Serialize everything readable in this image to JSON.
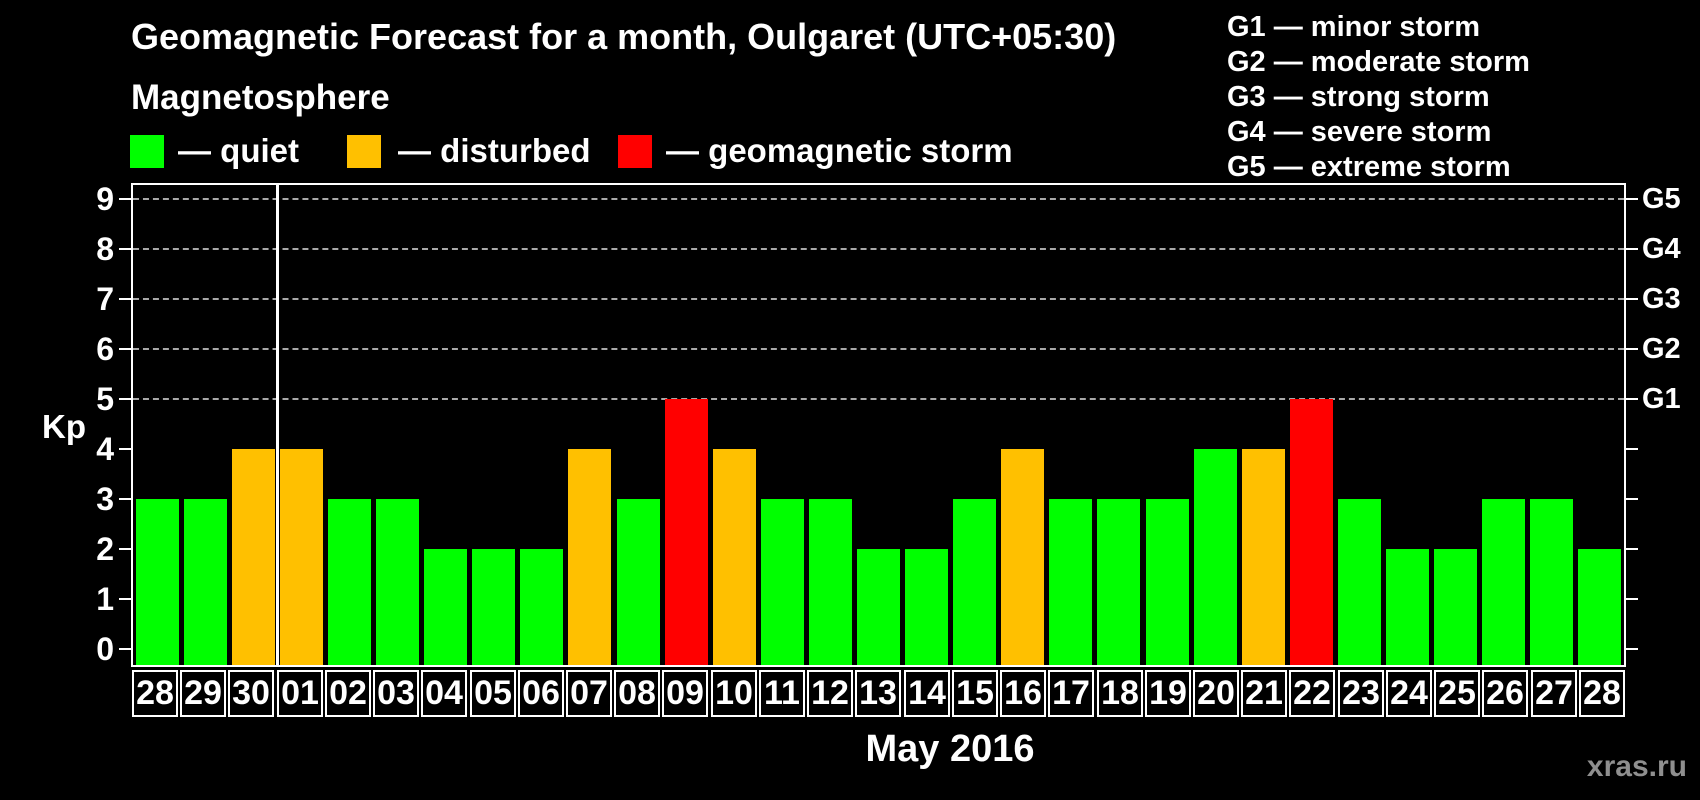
{
  "title": "Geomagnetic Forecast for a month, Oulgaret (UTC+05:30)",
  "subtitle": "Magnetosphere",
  "legend": {
    "items": [
      {
        "label": "— quiet",
        "color": "#00ff00",
        "status": "quiet"
      },
      {
        "label": "— disturbed",
        "color": "#ffc000",
        "status": "disturbed"
      },
      {
        "label": "— geomagnetic storm",
        "color": "#ff0000",
        "status": "storm"
      }
    ]
  },
  "storm_scale": {
    "items": [
      "G1 — minor storm",
      "G2 — moderate storm",
      "G3 — strong storm",
      "G4 — severe storm",
      "G5 — extreme storm"
    ]
  },
  "watermark": "xras.ru",
  "chart_data": {
    "type": "bar",
    "title": "Geomagnetic Forecast for a month, Oulgaret (UTC+05:30)",
    "xlabel": "May 2016",
    "ylabel": "Kp",
    "ylim": [
      0,
      9
    ],
    "grid": "horizontal dashed lines at Kp 5-9 (G1-G5 levels)",
    "legend_position": "top-left (magnetosphere states) and top-right (G storm scale)",
    "categories": [
      "28",
      "29",
      "30",
      "01",
      "02",
      "03",
      "04",
      "05",
      "06",
      "07",
      "08",
      "09",
      "10",
      "11",
      "12",
      "13",
      "14",
      "15",
      "16",
      "17",
      "18",
      "19",
      "20",
      "21",
      "22",
      "23",
      "24",
      "25",
      "26",
      "27",
      "28"
    ],
    "values": [
      3,
      3,
      4,
      4,
      3,
      3,
      2,
      2,
      2,
      4,
      3,
      5,
      4,
      3,
      3,
      2,
      2,
      3,
      4,
      3,
      3,
      3,
      4,
      4,
      5,
      3,
      2,
      2,
      3,
      3,
      2
    ],
    "statuses": [
      "quiet",
      "quiet",
      "disturbed",
      "disturbed",
      "quiet",
      "quiet",
      "quiet",
      "quiet",
      "quiet",
      "disturbed",
      "quiet",
      "storm",
      "disturbed",
      "quiet",
      "quiet",
      "quiet",
      "quiet",
      "quiet",
      "disturbed",
      "quiet",
      "quiet",
      "quiet",
      "quiet",
      "disturbed",
      "storm",
      "quiet",
      "quiet",
      "quiet",
      "quiet",
      "quiet",
      "quiet"
    ],
    "status_colors": {
      "quiet": "#00ff00",
      "disturbed": "#ffc000",
      "storm": "#ff0000"
    },
    "left_ticks": [
      0,
      1,
      2,
      3,
      4,
      5,
      6,
      7,
      8,
      9
    ],
    "gridline_levels": [
      5,
      6,
      7,
      8,
      9
    ],
    "right_axis_labels": [
      {
        "value": 5,
        "label": "G1"
      },
      {
        "value": 6,
        "label": "G2"
      },
      {
        "value": 7,
        "label": "G3"
      },
      {
        "value": 8,
        "label": "G4"
      },
      {
        "value": 9,
        "label": "G5"
      }
    ],
    "month_separator_after_index": 2
  }
}
